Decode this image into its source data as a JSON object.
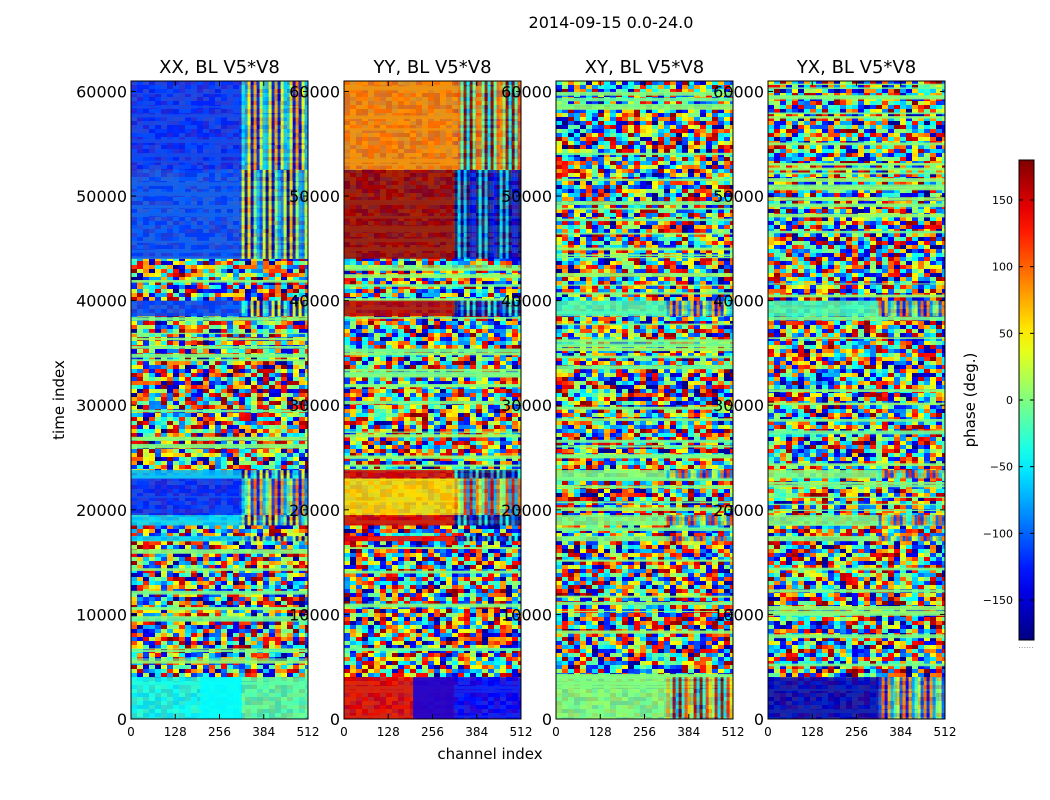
{
  "chart_data": {
    "type": "heatmap",
    "title": "2014-09-15 0.0-24.0",
    "xlabel": "channel index",
    "ylabel": "time index",
    "colorbar_label": "phase (deg.)",
    "colormap": "jet",
    "color_range": [
      -180,
      180
    ],
    "colorbar_ticks": [
      {
        "value": 150,
        "label": "150"
      },
      {
        "value": 100,
        "label": "100"
      },
      {
        "value": 50,
        "label": "50"
      },
      {
        "value": 0,
        "label": "0"
      },
      {
        "value": -50,
        "label": "−50"
      },
      {
        "value": -100,
        "label": "−100"
      },
      {
        "value": -150,
        "label": "−150"
      }
    ],
    "colorbar_footer": "......",
    "xlim": [
      0,
      512
    ],
    "ylim": [
      0,
      61000
    ],
    "xticks": [
      {
        "value": 0,
        "label": "0"
      },
      {
        "value": 128,
        "label": "128"
      },
      {
        "value": 256,
        "label": "256"
      },
      {
        "value": 384,
        "label": "384"
      },
      {
        "value": 512,
        "label": "512"
      }
    ],
    "yticks": [
      {
        "value": 0,
        "label": "0"
      },
      {
        "value": 10000,
        "label": "10000"
      },
      {
        "value": 20000,
        "label": "20000"
      },
      {
        "value": 30000,
        "label": "30000"
      },
      {
        "value": 40000,
        "label": "40000"
      },
      {
        "value": 50000,
        "label": "50000"
      },
      {
        "value": 60000,
        "label": "60000"
      }
    ],
    "panels": [
      {
        "title": "XX, BL V5*V8",
        "key": "XX"
      },
      {
        "title": "YY, BL V5*V8",
        "key": "YY"
      },
      {
        "title": "XY, BL V5*V8",
        "key": "XY"
      },
      {
        "title": "YX, BL V5*V8",
        "key": "YX"
      }
    ],
    "bands": [
      {
        "from": 0,
        "to": 4000,
        "XX": [
          -40,
          -45,
          -15
        ],
        "YY": [
          145,
          -140,
          -135
        ],
        "XY": [
          0,
          60,
          null
        ],
        "YX": [
          -160,
          -20,
          null
        ]
      },
      {
        "from": 4000,
        "to": 8000,
        "XX": null,
        "YY": null,
        "XY": null,
        "YX": null
      },
      {
        "from": 8000,
        "to": 17000,
        "XX": null,
        "YY": null,
        "XY": null,
        "YX": null
      },
      {
        "from": 17000,
        "to": 17500,
        "XX": [
          -60,
          -60,
          null
        ],
        "YY": [
          140,
          -150,
          null
        ],
        "XY": [
          0,
          0,
          null
        ],
        "YX": [
          0,
          0,
          null
        ]
      },
      {
        "from": 17500,
        "to": 18500,
        "XX": null,
        "YY": null,
        "XY": null,
        "YX": null
      },
      {
        "from": 18500,
        "to": 19500,
        "XX": [
          -60,
          -60,
          null
        ],
        "YY": [
          150,
          -160,
          null
        ],
        "XY": [
          0,
          0,
          null
        ],
        "YX": [
          0,
          0,
          null
        ]
      },
      {
        "from": 19500,
        "to": 23000,
        "XX": [
          -120,
          -20,
          null
        ],
        "YY": [
          60,
          30,
          null
        ],
        "XY": null,
        "YX": null
      },
      {
        "from": 23000,
        "to": 23800,
        "XX": [
          -70,
          -70,
          null
        ],
        "YY": [
          150,
          -160,
          null
        ],
        "XY": [
          0,
          0,
          null
        ],
        "YX": [
          0,
          0,
          null
        ]
      },
      {
        "from": 23800,
        "to": 38500,
        "XX": null,
        "YY": null,
        "XY": null,
        "YX": null
      },
      {
        "from": 38500,
        "to": 40000,
        "XX": [
          -110,
          -70,
          null
        ],
        "YY": [
          160,
          -140,
          null
        ],
        "XY": [
          -20,
          -20,
          null
        ],
        "YX": [
          -20,
          -20,
          null
        ]
      },
      {
        "from": 40000,
        "to": 44000,
        "XX": null,
        "YY": null,
        "XY": null,
        "YX": null
      },
      {
        "from": 44000,
        "to": 52500,
        "XX": [
          -110,
          -60,
          null
        ],
        "YY": [
          170,
          -170,
          null
        ],
        "XY": null,
        "YX": null
      },
      {
        "from": 52500,
        "to": 61000,
        "XX": [
          -120,
          -40,
          null
        ],
        "YY": [
          90,
          70,
          null
        ],
        "XY": null,
        "YX": null
      }
    ]
  }
}
